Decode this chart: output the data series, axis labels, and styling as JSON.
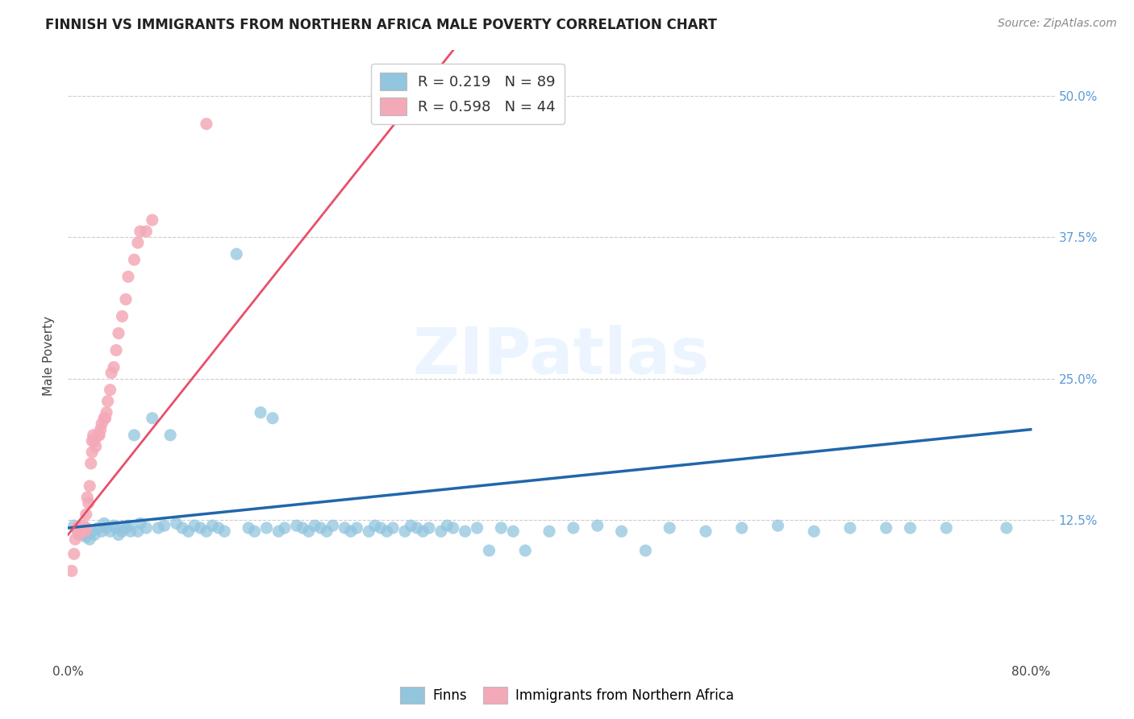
{
  "title": "FINNISH VS IMMIGRANTS FROM NORTHERN AFRICA MALE POVERTY CORRELATION CHART",
  "source": "Source: ZipAtlas.com",
  "ylabel": "Male Poverty",
  "xlim": [
    0.0,
    0.82
  ],
  "ylim": [
    0.03,
    0.54
  ],
  "x_tick_positions": [
    0.0,
    0.1,
    0.2,
    0.3,
    0.4,
    0.5,
    0.6,
    0.7,
    0.8
  ],
  "x_tick_labels": [
    "0.0%",
    "",
    "",
    "",
    "",
    "",
    "",
    "",
    "80.0%"
  ],
  "y_tick_positions": [
    0.0,
    0.125,
    0.25,
    0.375,
    0.5
  ],
  "y_tick_labels_right": [
    "",
    "12.5%",
    "25.0%",
    "37.5%",
    "50.0%"
  ],
  "legend_R1": "0.219",
  "legend_N1": "89",
  "legend_R2": "0.598",
  "legend_N2": "44",
  "blue_color": "#92c5de",
  "pink_color": "#f4a9b8",
  "blue_line_color": "#2166ac",
  "pink_line_color": "#e8506a",
  "blue_line": {
    "x0": 0.0,
    "y0": 0.118,
    "x1": 0.8,
    "y1": 0.205
  },
  "pink_line": {
    "x0": 0.0,
    "y0": 0.112,
    "x1": 0.32,
    "y1": 0.54
  },
  "watermark_text": "ZIPatlas",
  "grid_color": "#cccccc",
  "title_fontsize": 12,
  "source_fontsize": 10,
  "tick_fontsize": 11,
  "blue_scatter_x": [
    0.005,
    0.008,
    0.01,
    0.012,
    0.015,
    0.018,
    0.02,
    0.022,
    0.025,
    0.028,
    0.03,
    0.032,
    0.035,
    0.038,
    0.04,
    0.042,
    0.045,
    0.048,
    0.05,
    0.052,
    0.055,
    0.058,
    0.06,
    0.065,
    0.07,
    0.075,
    0.08,
    0.085,
    0.09,
    0.095,
    0.1,
    0.105,
    0.11,
    0.115,
    0.12,
    0.125,
    0.13,
    0.14,
    0.15,
    0.155,
    0.16,
    0.165,
    0.17,
    0.175,
    0.18,
    0.19,
    0.195,
    0.2,
    0.205,
    0.21,
    0.215,
    0.22,
    0.23,
    0.235,
    0.24,
    0.25,
    0.255,
    0.26,
    0.265,
    0.27,
    0.28,
    0.285,
    0.29,
    0.295,
    0.3,
    0.31,
    0.315,
    0.32,
    0.33,
    0.34,
    0.35,
    0.36,
    0.37,
    0.38,
    0.4,
    0.42,
    0.44,
    0.46,
    0.48,
    0.5,
    0.53,
    0.56,
    0.59,
    0.62,
    0.65,
    0.68,
    0.7,
    0.73,
    0.78
  ],
  "blue_scatter_y": [
    0.12,
    0.115,
    0.118,
    0.112,
    0.11,
    0.108,
    0.115,
    0.112,
    0.118,
    0.115,
    0.122,
    0.118,
    0.115,
    0.12,
    0.118,
    0.112,
    0.115,
    0.118,
    0.12,
    0.115,
    0.2,
    0.115,
    0.122,
    0.118,
    0.215,
    0.118,
    0.12,
    0.2,
    0.122,
    0.118,
    0.115,
    0.12,
    0.118,
    0.115,
    0.12,
    0.118,
    0.115,
    0.36,
    0.118,
    0.115,
    0.22,
    0.118,
    0.215,
    0.115,
    0.118,
    0.12,
    0.118,
    0.115,
    0.12,
    0.118,
    0.115,
    0.12,
    0.118,
    0.115,
    0.118,
    0.115,
    0.12,
    0.118,
    0.115,
    0.118,
    0.115,
    0.12,
    0.118,
    0.115,
    0.118,
    0.115,
    0.12,
    0.118,
    0.115,
    0.118,
    0.098,
    0.118,
    0.115,
    0.098,
    0.115,
    0.118,
    0.12,
    0.115,
    0.098,
    0.118,
    0.115,
    0.118,
    0.12,
    0.115,
    0.118,
    0.118,
    0.118,
    0.118,
    0.118
  ],
  "pink_scatter_x": [
    0.003,
    0.005,
    0.006,
    0.007,
    0.008,
    0.009,
    0.01,
    0.01,
    0.012,
    0.013,
    0.014,
    0.015,
    0.015,
    0.016,
    0.017,
    0.018,
    0.019,
    0.02,
    0.02,
    0.021,
    0.022,
    0.023,
    0.025,
    0.026,
    0.027,
    0.028,
    0.03,
    0.031,
    0.032,
    0.033,
    0.035,
    0.036,
    0.038,
    0.04,
    0.042,
    0.045,
    0.048,
    0.05,
    0.055,
    0.058,
    0.06,
    0.065,
    0.07,
    0.115
  ],
  "pink_scatter_y": [
    0.08,
    0.095,
    0.108,
    0.118,
    0.118,
    0.112,
    0.118,
    0.115,
    0.118,
    0.12,
    0.115,
    0.13,
    0.118,
    0.145,
    0.14,
    0.155,
    0.175,
    0.185,
    0.195,
    0.2,
    0.195,
    0.19,
    0.2,
    0.2,
    0.205,
    0.21,
    0.215,
    0.215,
    0.22,
    0.23,
    0.24,
    0.255,
    0.26,
    0.275,
    0.29,
    0.305,
    0.32,
    0.34,
    0.355,
    0.37,
    0.38,
    0.38,
    0.39,
    0.475
  ]
}
